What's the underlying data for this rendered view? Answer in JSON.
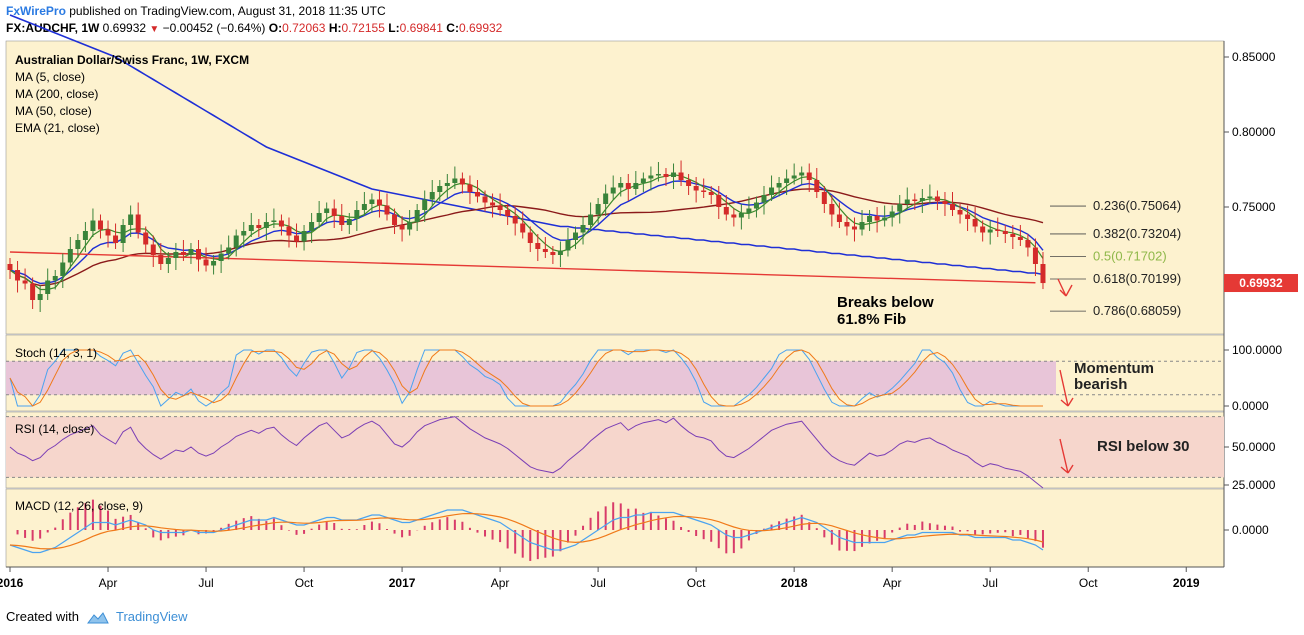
{
  "header": {
    "publisher": "FxWirePro",
    "published_text": "published on TradingView.com, August 31, 2018 11:35 UTC",
    "symbol": "FX:AUDCHF, 1W",
    "last": "0.69932",
    "change": "−0.00452 (−0.64%)",
    "open_label": "O:",
    "open": "0.72063",
    "high_label": "H:",
    "high": "0.72155",
    "low_label": "L:",
    "low": "0.69841",
    "close_label": "C:",
    "close": "0.69932"
  },
  "legend": {
    "title": "Australian Dollar/Swiss Franc, 1W, FXCM",
    "ma5": "MA (5, close)",
    "ma200": "MA (200, close)",
    "ma50": "MA (50, close)",
    "ema21": "EMA (21, close)"
  },
  "price_axis": {
    "ticks": [
      {
        "value": 0.85,
        "label": "0.85000"
      },
      {
        "value": 0.8,
        "label": "0.80000"
      },
      {
        "value": 0.75,
        "label": "0.75000"
      }
    ],
    "last_badge": "0.69932",
    "last_value": 0.69932
  },
  "fib_levels": [
    {
      "label": "0.236(0.75064)",
      "value": 0.75064,
      "color": "#222222"
    },
    {
      "label": "0.382(0.73204)",
      "value": 0.73204,
      "color": "#222222"
    },
    {
      "label": "0.5(0.71702)",
      "value": 0.71702,
      "color": "#8fb84a"
    },
    {
      "label": "0.618(0.70199)",
      "value": 0.70199,
      "color": "#222222"
    },
    {
      "label": "0.786(0.68059)",
      "value": 0.68059,
      "color": "#222222"
    }
  ],
  "annotations": {
    "fib_break": [
      "Breaks below",
      "61.8% Fib"
    ],
    "stoch_note": [
      "Momentum",
      "bearish"
    ],
    "rsi_note": "RSI below 30"
  },
  "stoch": {
    "label": "Stoch (14, 3, 1)",
    "ticks": [
      {
        "value": 100,
        "label": "100.0000"
      },
      {
        "value": 0,
        "label": "0.0000"
      }
    ],
    "upper_band": 80,
    "lower_band": 20
  },
  "rsi": {
    "label": "RSI (14, close)",
    "ticks": [
      {
        "value": 50,
        "label": "50.0000"
      },
      {
        "value": 25,
        "label": "25.0000"
      }
    ],
    "upper_band": 70,
    "lower_band": 30
  },
  "macd": {
    "label": "MACD (12, 26, close, 9)",
    "ticks": [
      {
        "value": 0,
        "label": "0.0000"
      }
    ]
  },
  "time_axis": {
    "labels": [
      {
        "label": "2016",
        "bold": true,
        "week": 0
      },
      {
        "label": "Apr",
        "bold": false,
        "week": 13
      },
      {
        "label": "Jul",
        "bold": false,
        "week": 26
      },
      {
        "label": "Oct",
        "bold": false,
        "week": 39
      },
      {
        "label": "2017",
        "bold": true,
        "week": 52
      },
      {
        "label": "Apr",
        "bold": false,
        "week": 65
      },
      {
        "label": "Jul",
        "bold": false,
        "week": 78
      },
      {
        "label": "Oct",
        "bold": false,
        "week": 91
      },
      {
        "label": "2018",
        "bold": true,
        "week": 104
      },
      {
        "label": "Apr",
        "bold": false,
        "week": 117
      },
      {
        "label": "Jul",
        "bold": false,
        "week": 130
      },
      {
        "label": "Oct",
        "bold": false,
        "week": 143
      },
      {
        "label": "2019",
        "bold": true,
        "week": 156
      }
    ]
  },
  "footer": {
    "created_with": "Created with",
    "brand": "TradingView"
  },
  "colors": {
    "panel_bg": "#fdf2cf",
    "up": "#39833a",
    "down": "#d42a2a",
    "ma5": "#3b8a2a",
    "ma200": "#8b1a1a",
    "ma50": "#1e2fd6",
    "ema21": "#1e2fd6",
    "trendline": "#e53935",
    "stoch_band": "#e8c5d8",
    "rsi_band": "#f6d6cc",
    "osc_blue": "#4aa3f0",
    "osc_orange": "#f07a1a",
    "rsi_line": "#7b3fb5",
    "macd_hist": "#d83b6a"
  },
  "chart_data": {
    "type": "line",
    "title": "Australian Dollar/Swiss Franc, 1W, FXCM",
    "x_unit": "week index from first week of 2016",
    "weekly_close": [
      0.708,
      0.701,
      0.699,
      0.688,
      0.692,
      0.701,
      0.704,
      0.713,
      0.722,
      0.728,
      0.734,
      0.741,
      0.735,
      0.731,
      0.726,
      0.738,
      0.745,
      0.733,
      0.725,
      0.718,
      0.712,
      0.716,
      0.72,
      0.718,
      0.722,
      0.715,
      0.711,
      0.714,
      0.719,
      0.723,
      0.731,
      0.734,
      0.738,
      0.736,
      0.74,
      0.741,
      0.737,
      0.731,
      0.727,
      0.734,
      0.74,
      0.746,
      0.749,
      0.744,
      0.738,
      0.742,
      0.748,
      0.752,
      0.755,
      0.751,
      0.745,
      0.738,
      0.735,
      0.74,
      0.748,
      0.755,
      0.76,
      0.764,
      0.766,
      0.769,
      0.765,
      0.76,
      0.757,
      0.753,
      0.751,
      0.748,
      0.744,
      0.739,
      0.733,
      0.726,
      0.722,
      0.72,
      0.718,
      0.721,
      0.728,
      0.733,
      0.738,
      0.745,
      0.752,
      0.759,
      0.763,
      0.766,
      0.762,
      0.766,
      0.769,
      0.771,
      0.772,
      0.77,
      0.773,
      0.768,
      0.764,
      0.761,
      0.76,
      0.758,
      0.75,
      0.745,
      0.743,
      0.746,
      0.749,
      0.753,
      0.758,
      0.763,
      0.766,
      0.769,
      0.771,
      0.773,
      0.768,
      0.76,
      0.752,
      0.745,
      0.74,
      0.737,
      0.735,
      0.74,
      0.744,
      0.741,
      0.743,
      0.747,
      0.752,
      0.755,
      0.754,
      0.756,
      0.757,
      0.754,
      0.752,
      0.748,
      0.745,
      0.742,
      0.737,
      0.733,
      0.735,
      0.734,
      0.732,
      0.73,
      0.728,
      0.723,
      0.712,
      0.6993
    ],
    "ma200": [
      0.878,
      0.876,
      0.874,
      0.872,
      0.87,
      0.868,
      0.866,
      0.864,
      0.862,
      0.86,
      0.858,
      0.856,
      0.854,
      0.852,
      0.85,
      0.847,
      0.844,
      0.841,
      0.838,
      0.835,
      0.832,
      0.829,
      0.826,
      0.823,
      0.82,
      0.817,
      0.814,
      0.811,
      0.808,
      0.805,
      0.802,
      0.799,
      0.796,
      0.793,
      0.79,
      0.788,
      0.786,
      0.784,
      0.782,
      0.78,
      0.778,
      0.776,
      0.774,
      0.772,
      0.77,
      0.768,
      0.766,
      0.764,
      0.762,
      0.761,
      0.76,
      0.759,
      0.758,
      0.757,
      0.756,
      0.755,
      0.754,
      0.753,
      0.752,
      0.751,
      0.75,
      0.749,
      0.748,
      0.747,
      0.746,
      0.745,
      0.744,
      0.743,
      0.742,
      0.741,
      0.74,
      0.739,
      0.738,
      0.737,
      0.737,
      0.736,
      0.736,
      0.735,
      0.735,
      0.734,
      0.734,
      0.733,
      0.733,
      0.732,
      0.732,
      0.731,
      0.731,
      0.73,
      0.73,
      0.729,
      0.729,
      0.728,
      0.728,
      0.727,
      0.727,
      0.726,
      0.726,
      0.725,
      0.725,
      0.724,
      0.724,
      0.723,
      0.723,
      0.722,
      0.722,
      0.721,
      0.721,
      0.72,
      0.72,
      0.719,
      0.719,
      0.718,
      0.718,
      0.717,
      0.717,
      0.716,
      0.716,
      0.715,
      0.715,
      0.714,
      0.714,
      0.713,
      0.713,
      0.712,
      0.712,
      0.711,
      0.711,
      0.71,
      0.71,
      0.709,
      0.709,
      0.708,
      0.708,
      0.707,
      0.707,
      0.706,
      0.706,
      0.705
    ],
    "rsi": [
      50,
      46,
      44,
      41,
      43,
      48,
      51,
      55,
      58,
      60,
      62,
      64,
      58,
      55,
      52,
      60,
      63,
      54,
      49,
      45,
      42,
      45,
      48,
      47,
      50,
      46,
      44,
      46,
      50,
      53,
      57,
      59,
      61,
      59,
      62,
      63,
      58,
      54,
      51,
      56,
      60,
      64,
      66,
      61,
      56,
      58,
      62,
      65,
      67,
      64,
      58,
      52,
      50,
      54,
      60,
      64,
      66,
      68,
      69,
      70,
      66,
      62,
      59,
      56,
      54,
      52,
      49,
      45,
      41,
      37,
      35,
      34,
      33,
      36,
      41,
      45,
      49,
      54,
      58,
      62,
      64,
      66,
      61,
      64,
      66,
      67,
      68,
      66,
      69,
      64,
      60,
      57,
      56,
      54,
      48,
      44,
      43,
      46,
      49,
      53,
      57,
      61,
      63,
      65,
      66,
      67,
      61,
      55,
      49,
      44,
      41,
      39,
      38,
      42,
      46,
      44,
      45,
      48,
      52,
      54,
      53,
      55,
      56,
      53,
      51,
      48,
      46,
      44,
      40,
      37,
      39,
      38,
      36,
      35,
      34,
      31,
      27,
      23
    ],
    "macd": [
      -0.006,
      -0.007,
      -0.008,
      -0.009,
      -0.009,
      -0.008,
      -0.007,
      -0.005,
      -0.003,
      -0.001,
      0.001,
      0.003,
      0.003,
      0.003,
      0.002,
      0.003,
      0.004,
      0.003,
      0.002,
      0.0,
      -0.001,
      -0.001,
      -0.001,
      -0.001,
      0.0,
      -0.001,
      -0.001,
      -0.001,
      0.0,
      0.001,
      0.002,
      0.003,
      0.004,
      0.004,
      0.004,
      0.005,
      0.004,
      0.003,
      0.002,
      0.002,
      0.003,
      0.004,
      0.005,
      0.005,
      0.004,
      0.004,
      0.004,
      0.005,
      0.006,
      0.006,
      0.005,
      0.004,
      0.003,
      0.003,
      0.004,
      0.005,
      0.006,
      0.007,
      0.008,
      0.008,
      0.008,
      0.007,
      0.006,
      0.005,
      0.004,
      0.003,
      0.001,
      -0.001,
      -0.003,
      -0.005,
      -0.006,
      -0.007,
      -0.008,
      -0.008,
      -0.007,
      -0.006,
      -0.004,
      -0.002,
      0.0,
      0.002,
      0.004,
      0.005,
      0.005,
      0.006,
      0.006,
      0.007,
      0.007,
      0.007,
      0.007,
      0.006,
      0.005,
      0.004,
      0.003,
      0.002,
      0.0,
      -0.002,
      -0.003,
      -0.003,
      -0.002,
      -0.001,
      0.0,
      0.001,
      0.002,
      0.003,
      0.004,
      0.005,
      0.004,
      0.003,
      0.001,
      -0.001,
      -0.003,
      -0.004,
      -0.005,
      -0.005,
      -0.005,
      -0.005,
      -0.005,
      -0.004,
      -0.003,
      -0.002,
      -0.002,
      -0.001,
      -0.001,
      -0.001,
      -0.001,
      -0.001,
      -0.002,
      -0.002,
      -0.003,
      -0.003,
      -0.003,
      -0.003,
      -0.003,
      -0.004,
      -0.004,
      -0.005,
      -0.006,
      -0.008
    ],
    "trendline": {
      "from": {
        "week": 0,
        "value": 0.72
      },
      "to": {
        "week": 136,
        "value": 0.6995
      }
    }
  }
}
